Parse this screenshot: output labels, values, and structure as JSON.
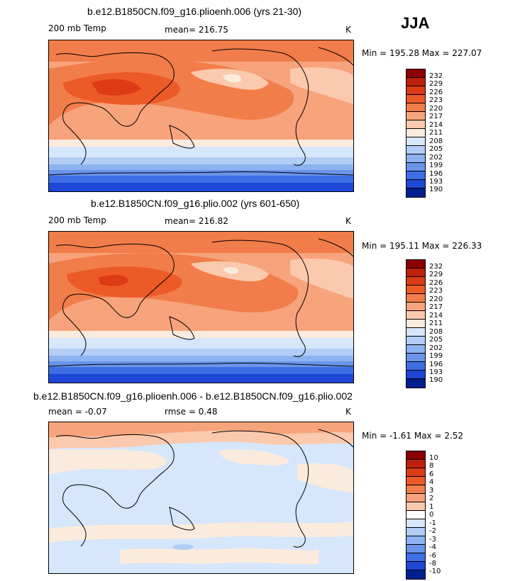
{
  "season": "JJA",
  "panels": [
    {
      "title": "b.e12.B1850CN.f09_g16.plioenh.006 (yrs 21-30)",
      "variable": "200 mb Temp",
      "stat1": "mean= 216.75",
      "stat2": "",
      "units": "K",
      "minmax": "Min = 195.28 Max = 227.07",
      "levels": [
        "232",
        "229",
        "226",
        "223",
        "220",
        "217",
        "214",
        "211",
        "208",
        "205",
        "202",
        "199",
        "196",
        "193",
        "190"
      ]
    },
    {
      "title": "b.e12.B1850CN.f09_g16.plio.002 (yrs 601-650)",
      "variable": "200 mb Temp",
      "stat1": "mean= 216.82",
      "stat2": "",
      "units": "K",
      "minmax": "Min = 195.11 Max = 226.33",
      "levels": [
        "232",
        "229",
        "226",
        "223",
        "220",
        "217",
        "214",
        "211",
        "208",
        "205",
        "202",
        "199",
        "196",
        "193",
        "190"
      ]
    },
    {
      "title": "b.e12.B1850CN.f09_g16.plioenh.006 - b.e12.B1850CN.f09_g16.plio.002",
      "variable": "mean = -0.07",
      "stat1": "rmse = 0.48",
      "stat2": "",
      "units": "K",
      "minmax": "Min = -1.61 Max = 2.52",
      "levels": [
        "10",
        "8",
        "6",
        "4",
        "3",
        "2",
        "1",
        "0",
        "-1",
        "-2",
        "-3",
        "-4",
        "-6",
        "-8",
        "-10"
      ]
    }
  ],
  "colors": {
    "scale": [
      "#8b0000",
      "#c0200a",
      "#dc3b15",
      "#ec5a28",
      "#f17d4a",
      "#f7a37b",
      "#fbc9ad",
      "#fbebdd",
      "#d6e6fb",
      "#b2cdf6",
      "#8cb2f1",
      "#6994ea",
      "#3e6ee4",
      "#1e47d8",
      "#001f8f"
    ]
  }
}
